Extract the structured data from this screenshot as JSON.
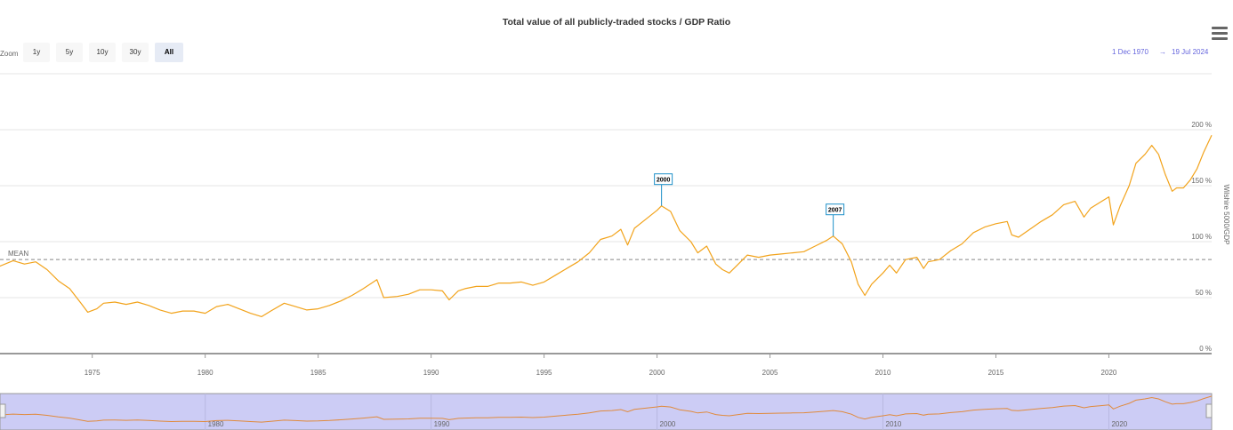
{
  "title": "Total value of all publicly-traded stocks / GDP Ratio",
  "toolbar": {
    "zoom_label": "Zoom",
    "buttons": [
      "1y",
      "5y",
      "10y",
      "30y",
      "All"
    ],
    "active": "All",
    "range_from": "1 Dec 1970",
    "range_arrow": "→",
    "range_to": "19 Jul 2024"
  },
  "colors": {
    "series": "#f2a31b",
    "mean": "#888888",
    "navigator_bg": "#ccccf5",
    "flag_border": "#1e90c8"
  },
  "chart_data": {
    "type": "line",
    "title": "Total value of all publicly-traded stocks / GDP Ratio",
    "ylabel": "Wilshire 5000/GDP",
    "ylim": [
      0,
      200
    ],
    "y_ticks": [
      "0 %",
      "50 %",
      "100 %",
      "150 %",
      "200 %"
    ],
    "x_ticks": [
      "1975",
      "1980",
      "1985",
      "1990",
      "1995",
      "2000",
      "2005",
      "2010",
      "2015",
      "2020"
    ],
    "navigator_ticks": [
      "1980",
      "1990",
      "2000",
      "2010",
      "2020"
    ],
    "mean": {
      "label": "MEAN",
      "value": 84
    },
    "flags": [
      {
        "label": "2000",
        "x": 2000.2,
        "y": 132
      },
      {
        "label": "2007",
        "x": 2007.8,
        "y": 105
      }
    ],
    "series": [
      {
        "points": [
          [
            1970.9,
            78
          ],
          [
            1971.5,
            83
          ],
          [
            1972.0,
            80
          ],
          [
            1972.5,
            82
          ],
          [
            1973.0,
            75
          ],
          [
            1973.5,
            65
          ],
          [
            1974.0,
            58
          ],
          [
            1974.5,
            45
          ],
          [
            1974.8,
            37
          ],
          [
            1975.2,
            40
          ],
          [
            1975.5,
            45
          ],
          [
            1976.0,
            46
          ],
          [
            1976.5,
            44
          ],
          [
            1977.0,
            46
          ],
          [
            1977.5,
            43
          ],
          [
            1978.0,
            39
          ],
          [
            1978.5,
            36
          ],
          [
            1979.0,
            38
          ],
          [
            1979.5,
            38
          ],
          [
            1980.0,
            36
          ],
          [
            1980.5,
            42
          ],
          [
            1981.0,
            44
          ],
          [
            1981.5,
            40
          ],
          [
            1982.0,
            36
          ],
          [
            1982.5,
            33
          ],
          [
            1982.9,
            38
          ],
          [
            1983.5,
            45
          ],
          [
            1984.0,
            42
          ],
          [
            1984.5,
            39
          ],
          [
            1985.0,
            40
          ],
          [
            1985.5,
            43
          ],
          [
            1986.0,
            47
          ],
          [
            1986.5,
            52
          ],
          [
            1987.0,
            58
          ],
          [
            1987.6,
            66
          ],
          [
            1987.9,
            50
          ],
          [
            1988.5,
            51
          ],
          [
            1989.0,
            53
          ],
          [
            1989.5,
            57
          ],
          [
            1990.0,
            57
          ],
          [
            1990.5,
            56
          ],
          [
            1990.8,
            48
          ],
          [
            1991.2,
            56
          ],
          [
            1991.5,
            58
          ],
          [
            1992.0,
            60
          ],
          [
            1992.5,
            60
          ],
          [
            1993.0,
            63
          ],
          [
            1993.5,
            63
          ],
          [
            1994.0,
            64
          ],
          [
            1994.5,
            61
          ],
          [
            1995.0,
            64
          ],
          [
            1995.5,
            70
          ],
          [
            1996.0,
            76
          ],
          [
            1996.5,
            82
          ],
          [
            1997.0,
            90
          ],
          [
            1997.5,
            102
          ],
          [
            1998.0,
            105
          ],
          [
            1998.4,
            111
          ],
          [
            1998.7,
            97
          ],
          [
            1999.0,
            112
          ],
          [
            1999.5,
            120
          ],
          [
            2000.0,
            128
          ],
          [
            2000.2,
            132
          ],
          [
            2000.6,
            127
          ],
          [
            2001.0,
            110
          ],
          [
            2001.5,
            100
          ],
          [
            2001.8,
            90
          ],
          [
            2002.2,
            96
          ],
          [
            2002.6,
            80
          ],
          [
            2002.9,
            75
          ],
          [
            2003.2,
            72
          ],
          [
            2003.6,
            80
          ],
          [
            2004.0,
            88
          ],
          [
            2004.5,
            86
          ],
          [
            2005.0,
            88
          ],
          [
            2005.5,
            89
          ],
          [
            2006.0,
            90
          ],
          [
            2006.5,
            91
          ],
          [
            2007.0,
            96
          ],
          [
            2007.5,
            101
          ],
          [
            2007.8,
            105
          ],
          [
            2008.2,
            98
          ],
          [
            2008.6,
            82
          ],
          [
            2008.9,
            62
          ],
          [
            2009.2,
            52
          ],
          [
            2009.5,
            62
          ],
          [
            2010.0,
            72
          ],
          [
            2010.3,
            79
          ],
          [
            2010.6,
            72
          ],
          [
            2011.0,
            84
          ],
          [
            2011.5,
            86
          ],
          [
            2011.8,
            76
          ],
          [
            2012.0,
            82
          ],
          [
            2012.5,
            84
          ],
          [
            2013.0,
            92
          ],
          [
            2013.5,
            98
          ],
          [
            2014.0,
            108
          ],
          [
            2014.5,
            113
          ],
          [
            2015.0,
            116
          ],
          [
            2015.5,
            118
          ],
          [
            2015.7,
            106
          ],
          [
            2016.0,
            104
          ],
          [
            2016.5,
            111
          ],
          [
            2017.0,
            118
          ],
          [
            2017.5,
            124
          ],
          [
            2018.0,
            133
          ],
          [
            2018.5,
            136
          ],
          [
            2018.9,
            122
          ],
          [
            2019.2,
            130
          ],
          [
            2019.6,
            135
          ],
          [
            2020.0,
            140
          ],
          [
            2020.2,
            115
          ],
          [
            2020.5,
            132
          ],
          [
            2020.9,
            150
          ],
          [
            2021.2,
            170
          ],
          [
            2021.6,
            178
          ],
          [
            2021.9,
            186
          ],
          [
            2022.2,
            178
          ],
          [
            2022.5,
            160
          ],
          [
            2022.8,
            145
          ],
          [
            2023.0,
            148
          ],
          [
            2023.3,
            148
          ],
          [
            2023.6,
            155
          ],
          [
            2023.9,
            165
          ],
          [
            2024.2,
            180
          ],
          [
            2024.55,
            195
          ]
        ]
      }
    ]
  }
}
